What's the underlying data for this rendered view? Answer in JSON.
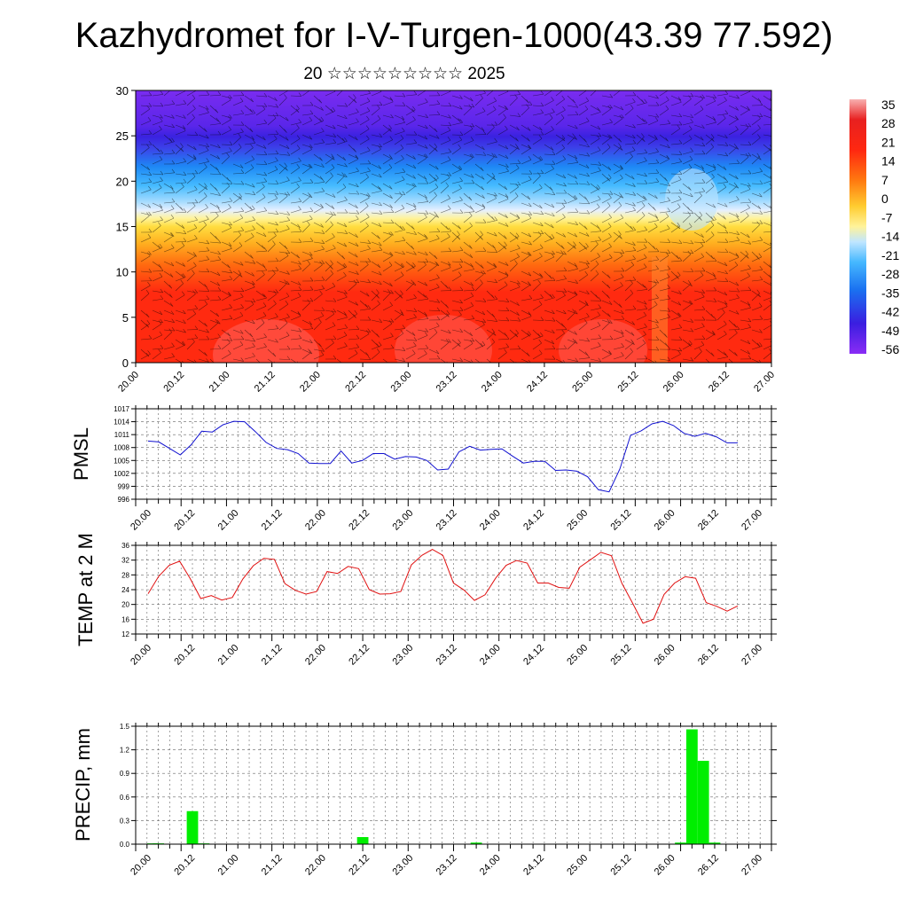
{
  "title": "Kazhydromet for I-V-Turgen-1000(43.39 77.592)",
  "subtitle": "20 ☆☆☆☆☆☆☆☆☆ 2025",
  "time_labels": [
    "20.00",
    "20.12",
    "21.00",
    "21.12",
    "22.00",
    "22.12",
    "23.00",
    "23.12",
    "24.00",
    "24.12",
    "25.00",
    "25.12",
    "26.00",
    "26.12",
    "27.00"
  ],
  "colors": {
    "pmsl_line": "#1010d0",
    "temp_line": "#e01010",
    "precip_bar": "#00ee00"
  },
  "colorbar_labels": [
    "35",
    "28",
    "21",
    "14",
    "7",
    "0",
    "-7",
    "-14",
    "-21",
    "-28",
    "-35",
    "-42",
    "-49",
    "-56"
  ],
  "chart_data": [
    {
      "type": "heatmap",
      "name": "temperature-wind-cross-section",
      "ylim": [
        0,
        30
      ],
      "yticks": [
        "0",
        "5",
        "10",
        "15",
        "20",
        "25",
        "30"
      ],
      "x": "time_labels",
      "legend": "right colorbar",
      "color_scale": [
        "-56",
        "35"
      ]
    },
    {
      "type": "line",
      "ylabel": "PMSL",
      "ylim": [
        996,
        1017
      ],
      "yticks": [
        "996",
        "999",
        "1002",
        "1005",
        "1008",
        "1011",
        "1014",
        "1017"
      ],
      "values": [
        1009.5,
        1009.3,
        1007.8,
        1006.3,
        1008.6,
        1011.8,
        1011.6,
        1013.3,
        1014.1,
        1014.0,
        1011.7,
        1009.2,
        1007.8,
        1007.5,
        1006.6,
        1004.4,
        1004.3,
        1004.3,
        1007.2,
        1004.4,
        1005.0,
        1006.6,
        1006.6,
        1005.3,
        1005.9,
        1005.8,
        1005.0,
        1002.8,
        1003.0,
        1007.0,
        1008.3,
        1007.4,
        1007.6,
        1007.7,
        1006.0,
        1004.4,
        1004.8,
        1004.8,
        1002.7,
        1002.8,
        1002.5,
        1001.2,
        998.2,
        997.7,
        1003.0,
        1010.8,
        1011.9,
        1013.5,
        1014.1,
        1013.1,
        1011.3,
        1010.6,
        1011.3,
        1010.5,
        1009.1,
        1009.1
      ],
      "grid": true
    },
    {
      "type": "line",
      "ylabel": "TEMP at 2 M",
      "ylim": [
        12,
        36
      ],
      "yticks": [
        "12",
        "16",
        "20",
        "24",
        "28",
        "32",
        "36"
      ],
      "values": [
        22.9,
        27.6,
        30.6,
        31.7,
        27.0,
        21.6,
        22.4,
        21.2,
        21.9,
        26.9,
        30.5,
        32.5,
        32.2,
        25.6,
        23.8,
        22.8,
        23.5,
        28.9,
        28.4,
        30.3,
        29.7,
        24.0,
        22.8,
        22.9,
        23.5,
        30.7,
        33.3,
        34.9,
        33.3,
        25.8,
        23.9,
        21.1,
        22.6,
        27.1,
        30.6,
        31.9,
        31.2,
        25.8,
        25.8,
        24.6,
        24.4,
        30.1,
        32.1,
        34.1,
        33.2,
        25.7,
        20.4,
        14.9,
        16.0,
        22.7,
        25.8,
        27.5,
        27.1,
        20.5,
        19.5,
        18.2,
        19.6
      ],
      "grid": true
    },
    {
      "type": "bar",
      "ylabel": "PRECIP, mm",
      "ylim": [
        0,
        1.5
      ],
      "yticks": [
        "0.0",
        "0.3",
        "0.6",
        "0.9",
        "1.2",
        "1.5"
      ],
      "bars": [
        {
          "t": 1.0,
          "value": 0.01
        },
        {
          "t": 1.5,
          "value": 0.01
        },
        {
          "t": 4.5,
          "value": 0.42
        },
        {
          "t": 5.5,
          "value": 0.01
        },
        {
          "t": 19.5,
          "value": 0.09
        },
        {
          "t": 29.5,
          "value": 0.02
        },
        {
          "t": 47.5,
          "value": 0.02
        },
        {
          "t": 48.5,
          "value": 1.46
        },
        {
          "t": 49.5,
          "value": 1.06
        },
        {
          "t": 50.5,
          "value": 0.02
        }
      ],
      "grid": true
    }
  ]
}
